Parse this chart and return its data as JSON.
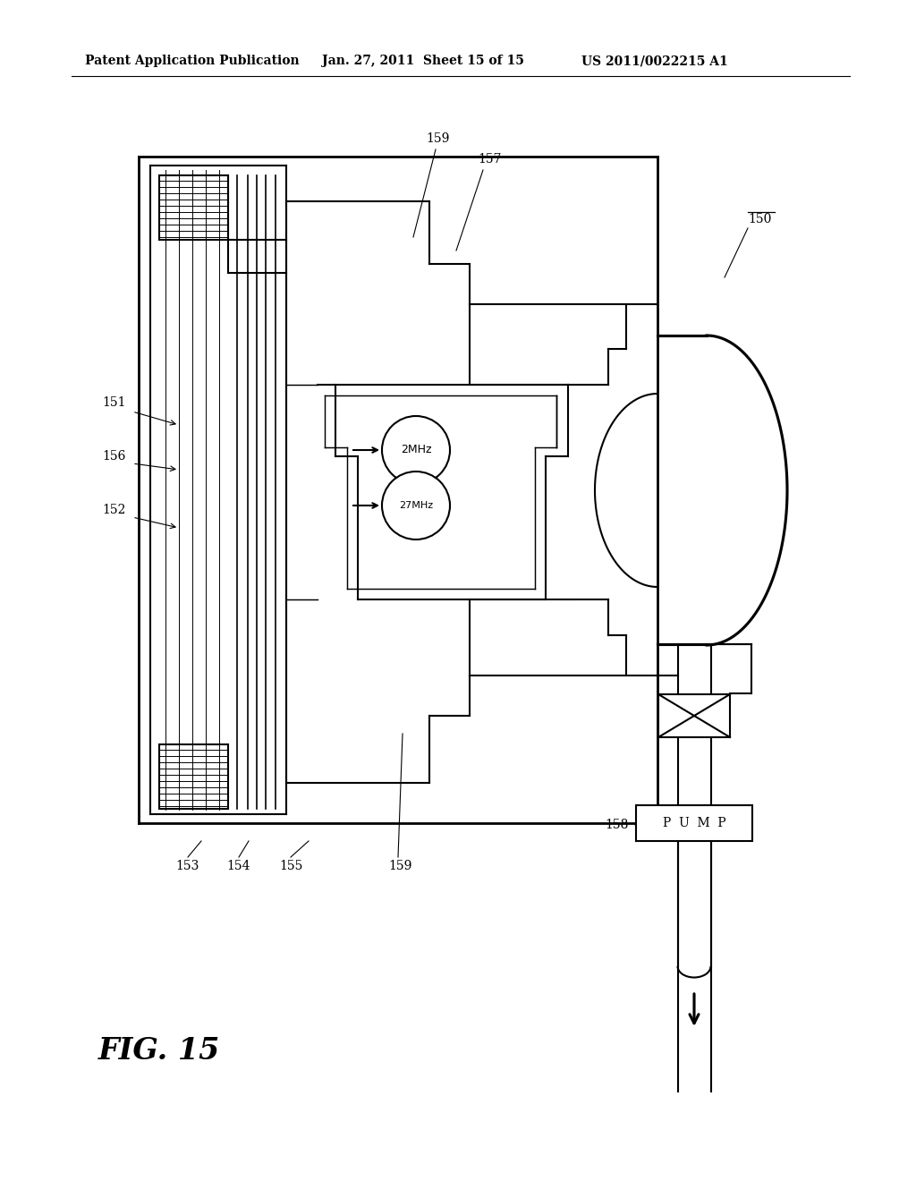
{
  "header_left": "Patent Application Publication",
  "header_mid": "Jan. 27, 2011  Sheet 15 of 15",
  "header_right": "US 2011/0022215 A1",
  "fig_label": "FIG. 15",
  "background_color": "#ffffff",
  "line_color": "#000000"
}
